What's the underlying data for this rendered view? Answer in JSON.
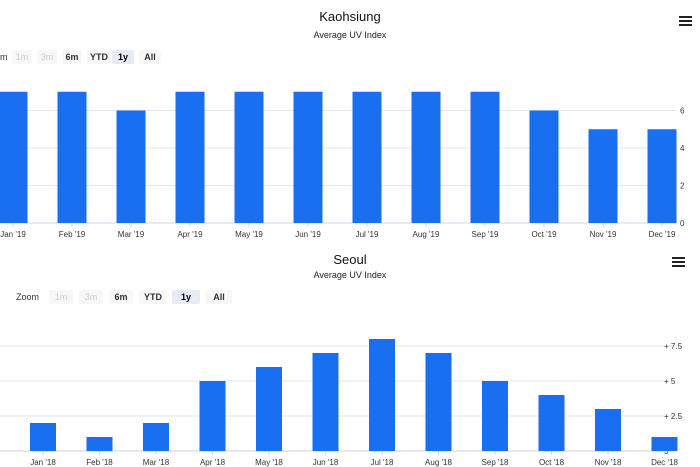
{
  "charts": [
    {
      "id": "top",
      "title": "Kaohsiung",
      "subtitle": "Average UV Index",
      "range_selector": {
        "label": "m",
        "buttons": [
          {
            "label": "1m",
            "state": "disabled"
          },
          {
            "label": "3m",
            "state": "disabled"
          },
          {
            "label": "6m",
            "state": "normal"
          },
          {
            "label": "YTD",
            "state": "normal"
          },
          {
            "label": "1y",
            "state": "active"
          },
          {
            "label": "All",
            "state": "normal"
          }
        ]
      }
    },
    {
      "id": "bottom",
      "title": "Seoul",
      "subtitle": "Average UV Index",
      "range_selector": {
        "label": "Zoom",
        "buttons": [
          {
            "label": "1m",
            "state": "disabled"
          },
          {
            "label": "3m",
            "state": "disabled"
          },
          {
            "label": "6m",
            "state": "normal"
          },
          {
            "label": "YTD",
            "state": "normal"
          },
          {
            "label": "1y",
            "state": "active"
          },
          {
            "label": "All",
            "state": "normal"
          }
        ]
      }
    }
  ],
  "colors": {
    "bar": "#1a6ef0",
    "grid": "#e6e6e6",
    "axis": "#ccd6eb"
  },
  "chart_data": [
    {
      "type": "bar",
      "title": "Kaohsiung",
      "subtitle": "Average UV Index",
      "categories": [
        "Jan '19",
        "Feb '19",
        "Mar '19",
        "Apr '19",
        "May '19",
        "Jun '19",
        "Jul '19",
        "Aug '19",
        "Sep '19",
        "Oct '19",
        "Nov '19",
        "Dec '19"
      ],
      "series": [
        {
          "values": [
            7,
            7,
            6,
            7,
            7,
            7,
            7,
            7,
            7,
            6,
            5,
            5
          ]
        }
      ],
      "yticks": [
        "0",
        "2",
        "4",
        "6"
      ],
      "ylim": [
        0,
        8
      ],
      "y_axis_side": "right",
      "grid": true,
      "legend": "none"
    },
    {
      "type": "bar",
      "title": "Seoul",
      "subtitle": "Average UV Index",
      "categories": [
        "Jan '18",
        "Feb '18",
        "Mar '18",
        "Apr '18",
        "May '18",
        "Jun '18",
        "Jul '18",
        "Aug '18",
        "Sep '18",
        "Oct '18",
        "Nov '18",
        "Dec '18"
      ],
      "series": [
        {
          "values": [
            2,
            1,
            2,
            5,
            6,
            7,
            8,
            7,
            5,
            4,
            3,
            1
          ]
        }
      ],
      "yticks": [
        "0",
        "+ 2.5",
        "+ 5",
        "+ 7.5"
      ],
      "ylim": [
        0,
        10
      ],
      "y_axis_side": "right",
      "grid": true,
      "legend": "none"
    }
  ]
}
